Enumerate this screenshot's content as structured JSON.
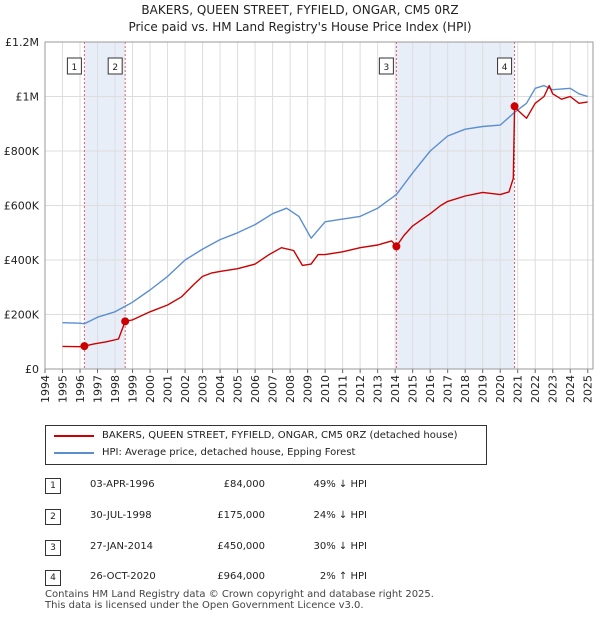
{
  "title": "BAKERS, QUEEN STREET, FYFIELD, ONGAR, CM5 0RZ",
  "subtitle": "Price paid vs. HM Land Registry's House Price Index (HPI)",
  "colors": {
    "price_line": "#cc0000",
    "hpi_line": "#5b8fd0",
    "shade": "#e8eef8",
    "grid": "#dddddd",
    "marker_line": "#e06060"
  },
  "chart_data": {
    "type": "line",
    "title": "BAKERS, QUEEN STREET, FYFIELD, ONGAR, CM5 0RZ",
    "xlabel": "",
    "ylabel": "",
    "xlim": [
      1994,
      2025.3
    ],
    "ylim": [
      0,
      1200000
    ],
    "x_ticks": [
      1994,
      1995,
      1996,
      1997,
      1998,
      1999,
      2000,
      2001,
      2002,
      2003,
      2004,
      2005,
      2006,
      2007,
      2008,
      2009,
      2010,
      2011,
      2012,
      2013,
      2014,
      2015,
      2016,
      2017,
      2018,
      2019,
      2020,
      2021,
      2022,
      2023,
      2024,
      2025
    ],
    "y_ticks": [
      {
        "value": 0,
        "label": "£0"
      },
      {
        "value": 200000,
        "label": "£200K"
      },
      {
        "value": 400000,
        "label": "£400K"
      },
      {
        "value": 600000,
        "label": "£600K"
      },
      {
        "value": 800000,
        "label": "£800K"
      },
      {
        "value": 1000000,
        "label": "£1M"
      },
      {
        "value": 1200000,
        "label": "£1.2M"
      }
    ],
    "grid": true,
    "shaded_periods": [
      [
        1996.25,
        1998.58
      ],
      [
        2014.07,
        2020.82
      ]
    ],
    "series": [
      {
        "name": "BAKERS, QUEEN STREET, FYFIELD, ONGAR, CM5 0RZ (detached house)",
        "color": "#cc0000",
        "x": [
          1995.0,
          1996.0,
          1996.25,
          1996.8,
          1997.5,
          1998.2,
          1998.58,
          1999.0,
          2000.0,
          2001.0,
          2001.8,
          2002.5,
          2003.0,
          2003.5,
          2004.0,
          2005.0,
          2006.0,
          2006.8,
          2007.5,
          2008.2,
          2008.7,
          2009.2,
          2009.6,
          2010.0,
          2011.0,
          2012.0,
          2013.0,
          2013.8,
          2014.07,
          2014.5,
          2015.0,
          2016.0,
          2016.6,
          2017.0,
          2018.0,
          2019.0,
          2020.0,
          2020.5,
          2020.75,
          2020.82,
          2021.0,
          2021.5,
          2022.0,
          2022.5,
          2022.8,
          2023.0,
          2023.5,
          2024.0,
          2024.5,
          2025.0
        ],
        "y": [
          83000,
          82000,
          84000,
          92000,
          100000,
          110000,
          175000,
          180000,
          210000,
          235000,
          265000,
          310000,
          340000,
          352000,
          358000,
          368000,
          385000,
          420000,
          445000,
          435000,
          380000,
          385000,
          420000,
          420000,
          430000,
          445000,
          455000,
          470000,
          450000,
          490000,
          525000,
          570000,
          600000,
          615000,
          635000,
          648000,
          640000,
          650000,
          700000,
          964000,
          950000,
          920000,
          975000,
          1000000,
          1040000,
          1010000,
          990000,
          1000000,
          975000,
          980000
        ]
      },
      {
        "name": "HPI: Average price, detached house, Epping Forest",
        "color": "#5b8fd0",
        "x": [
          1995.0,
          1996.0,
          1996.25,
          1997.0,
          1998.0,
          1998.58,
          1999.0,
          2000.0,
          2001.0,
          2002.0,
          2003.0,
          2004.0,
          2005.0,
          2006.0,
          2007.0,
          2007.8,
          2008.5,
          2009.2,
          2010.0,
          2011.0,
          2012.0,
          2013.0,
          2014.07,
          2015.0,
          2016.0,
          2017.0,
          2018.0,
          2019.0,
          2020.0,
          2020.82,
          2021.5,
          2022.0,
          2022.5,
          2023.0,
          2024.0,
          2024.5,
          2025.0
        ],
        "y": [
          170000,
          168000,
          166000,
          190000,
          210000,
          230000,
          245000,
          290000,
          340000,
          400000,
          440000,
          475000,
          500000,
          530000,
          570000,
          590000,
          560000,
          480000,
          540000,
          550000,
          560000,
          590000,
          640000,
          720000,
          800000,
          855000,
          880000,
          890000,
          895000,
          942000,
          975000,
          1030000,
          1040000,
          1025000,
          1030000,
          1010000,
          1000000
        ]
      }
    ],
    "annotations": [
      {
        "label": "1",
        "x": 1996.25,
        "y": 84000
      },
      {
        "label": "2",
        "x": 1998.58,
        "y": 175000
      },
      {
        "label": "3",
        "x": 2014.07,
        "y": 450000
      },
      {
        "label": "4",
        "x": 2020.82,
        "y": 964000
      }
    ]
  },
  "legend": {
    "price": "BAKERS, QUEEN STREET, FYFIELD, ONGAR, CM5 0RZ (detached house)",
    "hpi": "HPI: Average price, detached house, Epping Forest"
  },
  "transactions": [
    {
      "num": "1",
      "date": "03-APR-1996",
      "price": "£84,000",
      "hpi": "49% ↓ HPI"
    },
    {
      "num": "2",
      "date": "30-JUL-1998",
      "price": "£175,000",
      "hpi": "24% ↓ HPI"
    },
    {
      "num": "3",
      "date": "27-JAN-2014",
      "price": "£450,000",
      "hpi": "30% ↓ HPI"
    },
    {
      "num": "4",
      "date": "26-OCT-2020",
      "price": "£964,000",
      "hpi": "2% ↑ HPI"
    }
  ],
  "footer": {
    "line1": "Contains HM Land Registry data © Crown copyright and database right 2025.",
    "line2": "This data is licensed under the Open Government Licence v3.0."
  }
}
